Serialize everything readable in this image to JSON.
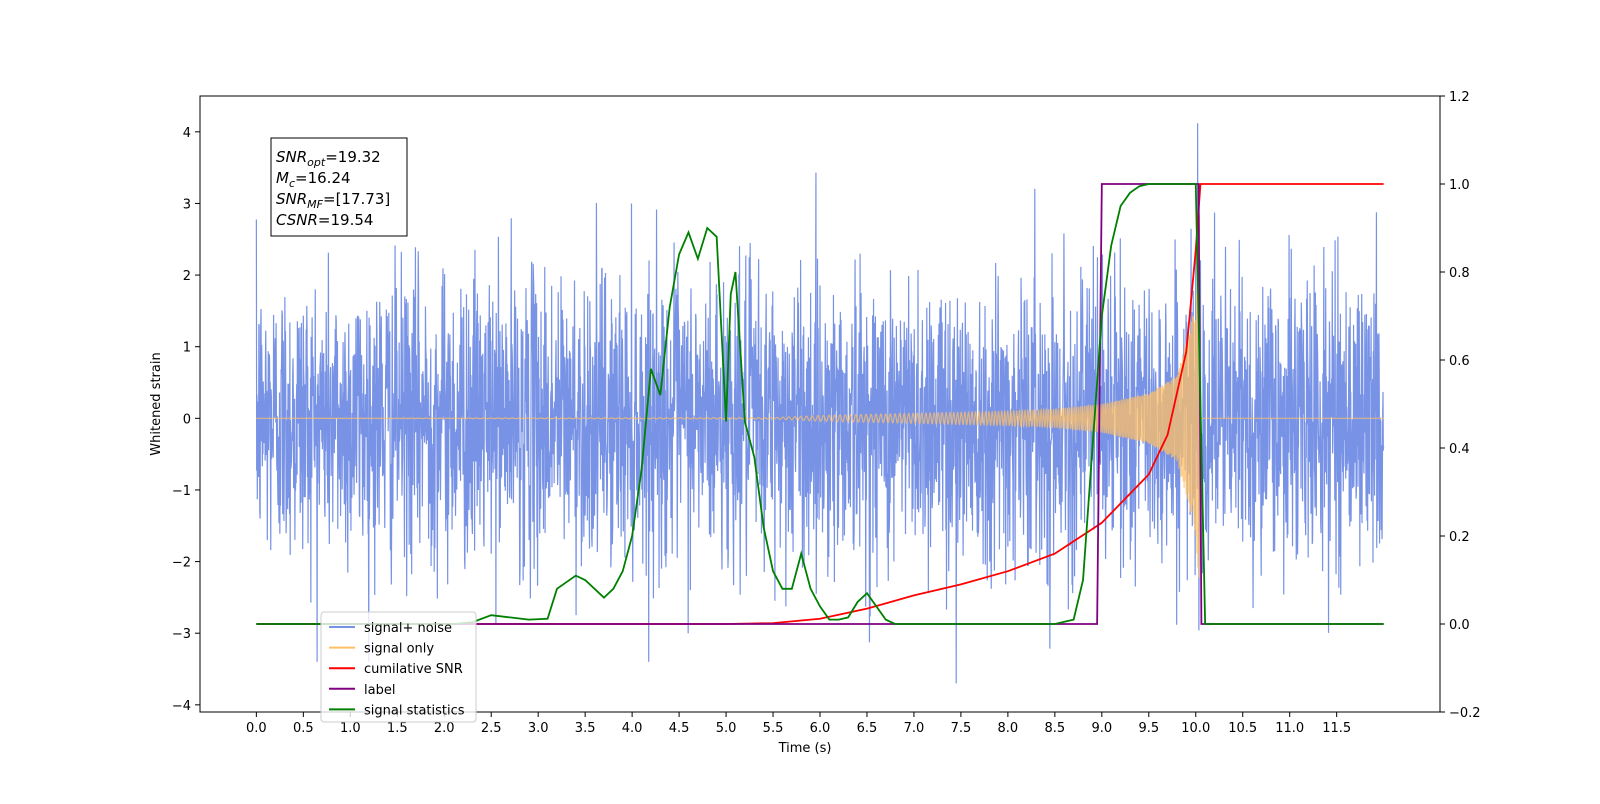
{
  "chart_data": {
    "type": "line",
    "title": "",
    "xlabel": "Time (s)",
    "ylabel_left": "Whitened strain",
    "ylabel_right": "",
    "xlim": [
      -0.6,
      12.6
    ],
    "ylim_left": [
      -4.1,
      4.5
    ],
    "ylim_right": [
      -0.2,
      1.2
    ],
    "x_ticks": [
      "0.0",
      "0.5",
      "1.0",
      "1.5",
      "2.0",
      "2.5",
      "3.0",
      "3.5",
      "4.0",
      "4.5",
      "5.0",
      "5.5",
      "6.0",
      "6.5",
      "7.0",
      "7.5",
      "8.0",
      "8.5",
      "9.0",
      "9.5",
      "10.0",
      "10.5",
      "11.0",
      "11.5"
    ],
    "y_ticks_left": [
      "4",
      "3",
      "2",
      "1",
      "0",
      "−1",
      "−2",
      "−3",
      "−4"
    ],
    "y_ticks_right": [
      "1.2",
      "1.0",
      "0.8",
      "0.6",
      "0.4",
      "0.2",
      "0.0",
      "−0.2"
    ],
    "grid": false,
    "legend_position": "bottom-left",
    "annotation_lines": [
      {
        "label": "SNR",
        "sub": "opt",
        "value": "=19.32"
      },
      {
        "label": "M",
        "sub": "c",
        "value": "=16.24"
      },
      {
        "label": "SNR",
        "sub": "MF",
        "value": "=[17.73]"
      },
      {
        "label": "CSNR",
        "sub": "",
        "value": "=19.54"
      }
    ],
    "series": [
      {
        "name": "signal+ noise",
        "color": "#7893e6",
        "axis": "left",
        "description_values": {
          "t_start": 0.0,
          "t_end": 12.0,
          "noise_std": 1.0,
          "peak_value": 4.12,
          "peak_time": 10.02,
          "min_value": -3.7,
          "min_time": 7.45
        }
      },
      {
        "name": "signal only",
        "color": "#ffbf66",
        "axis": "left",
        "envelope": {
          "x": [
            0.0,
            5.5,
            6.0,
            7.0,
            8.0,
            8.5,
            9.0,
            9.5,
            9.8,
            10.0,
            10.04,
            10.05,
            12.0
          ],
          "amp": [
            0.0,
            0.01,
            0.04,
            0.07,
            0.1,
            0.13,
            0.2,
            0.35,
            0.6,
            1.6,
            2.9,
            0.0,
            0.0
          ]
        }
      },
      {
        "name": "cumilative SNR",
        "color": "#ff0000",
        "axis": "right",
        "x": [
          0.0,
          5.0,
          5.5,
          6.0,
          6.5,
          7.0,
          7.5,
          8.0,
          8.5,
          9.0,
          9.5,
          9.7,
          9.9,
          10.0,
          10.05,
          12.0
        ],
        "y": [
          0.0,
          0.0,
          0.002,
          0.012,
          0.035,
          0.065,
          0.09,
          0.12,
          0.16,
          0.23,
          0.34,
          0.43,
          0.62,
          0.85,
          1.0,
          1.0
        ]
      },
      {
        "name": "label",
        "color": "#800080",
        "axis": "right",
        "x": [
          0.0,
          8.95,
          9.0,
          10.03,
          10.06,
          12.0
        ],
        "y": [
          0.0,
          0.0,
          1.0,
          1.0,
          0.0,
          0.0
        ]
      },
      {
        "name": "signal statistics",
        "color": "#008000",
        "axis": "right",
        "x": [
          0.0,
          2.1,
          2.3,
          2.5,
          2.7,
          2.9,
          3.1,
          3.2,
          3.3,
          3.4,
          3.5,
          3.6,
          3.7,
          3.8,
          3.9,
          4.0,
          4.1,
          4.2,
          4.3,
          4.4,
          4.5,
          4.6,
          4.7,
          4.8,
          4.9,
          5.0,
          5.05,
          5.1,
          5.2,
          5.3,
          5.4,
          5.5,
          5.6,
          5.7,
          5.8,
          5.9,
          6.0,
          6.1,
          6.2,
          6.3,
          6.4,
          6.5,
          6.6,
          6.7,
          6.8,
          7.0,
          8.5,
          8.7,
          8.8,
          8.9,
          9.0,
          9.1,
          9.2,
          9.3,
          9.4,
          9.5,
          9.7,
          10.0,
          10.05,
          10.1,
          12.0
        ],
        "y": [
          0.0,
          0.0,
          0.004,
          0.02,
          0.015,
          0.01,
          0.012,
          0.08,
          0.095,
          0.11,
          0.1,
          0.08,
          0.06,
          0.08,
          0.12,
          0.2,
          0.35,
          0.58,
          0.52,
          0.72,
          0.84,
          0.89,
          0.83,
          0.9,
          0.88,
          0.46,
          0.75,
          0.8,
          0.46,
          0.38,
          0.22,
          0.12,
          0.08,
          0.08,
          0.16,
          0.08,
          0.04,
          0.01,
          0.01,
          0.015,
          0.05,
          0.07,
          0.04,
          0.01,
          0.0,
          0.0,
          0.0,
          0.01,
          0.1,
          0.4,
          0.7,
          0.86,
          0.95,
          0.98,
          0.995,
          1.0,
          1.0,
          1.0,
          0.5,
          0.0,
          0.0
        ]
      }
    ]
  }
}
